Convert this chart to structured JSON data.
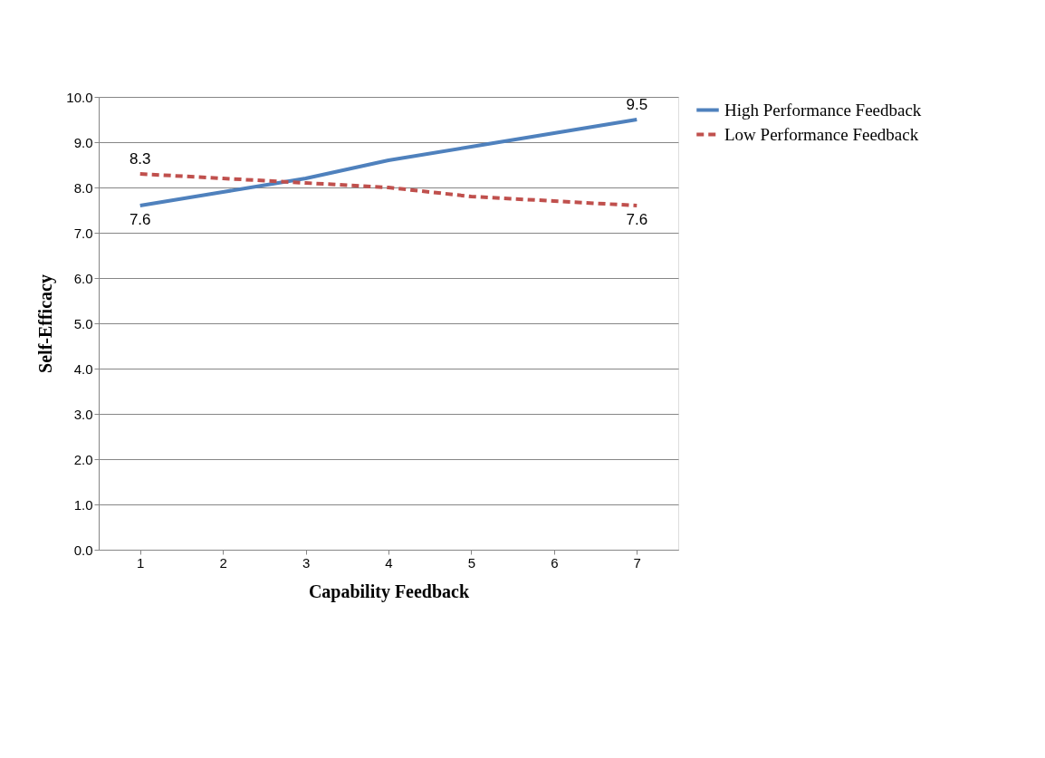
{
  "chart_data": {
    "type": "line",
    "xlabel": "Capability Feedback",
    "ylabel": "Self-Efficacy",
    "categories": [
      "1",
      "2",
      "3",
      "4",
      "5",
      "6",
      "7"
    ],
    "series": [
      {
        "name": "High Performance Feedback",
        "color": "#4f81bd",
        "line_style": "solid",
        "values": [
          7.6,
          7.9,
          8.2,
          8.6,
          8.9,
          9.2,
          9.5
        ],
        "value_labels": [
          "7.6",
          null,
          null,
          null,
          null,
          null,
          "9.5"
        ]
      },
      {
        "name": "Low Performance Feedback",
        "color": "#c0504d",
        "line_style": "dashed",
        "values": [
          8.3,
          8.2,
          8.1,
          8.0,
          7.8,
          7.7,
          7.6
        ],
        "value_labels": [
          "8.3",
          null,
          null,
          null,
          null,
          null,
          "7.6"
        ]
      }
    ],
    "ylim": [
      0,
      10
    ],
    "yticks": [
      {
        "value": 0,
        "label": "0.0"
      },
      {
        "value": 1,
        "label": "1.0"
      },
      {
        "value": 2,
        "label": "2.0"
      },
      {
        "value": 3,
        "label": "3.0"
      },
      {
        "value": 4,
        "label": "4.0"
      },
      {
        "value": 5,
        "label": "5.0"
      },
      {
        "value": 6,
        "label": "6.0"
      },
      {
        "value": 7,
        "label": "7.0"
      },
      {
        "value": 8,
        "label": "8.0"
      },
      {
        "value": 9,
        "label": "9.0"
      },
      {
        "value": 10,
        "label": "10.0"
      }
    ],
    "grid": "y",
    "legend": "right",
    "marker": "none"
  }
}
